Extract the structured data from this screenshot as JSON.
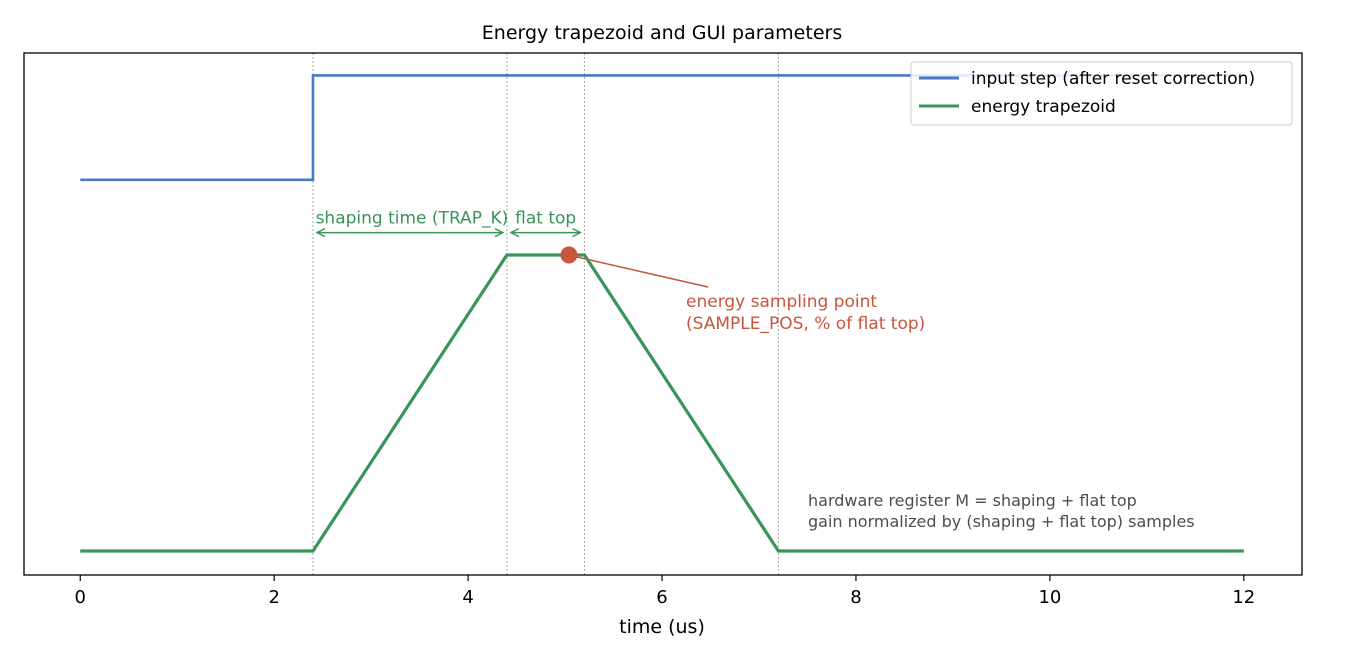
{
  "chart_data": {
    "type": "line",
    "title": "Energy trapezoid and GUI parameters",
    "xlabel": "time (us)",
    "ylabel": "",
    "xlim": [
      -0.58,
      12.6
    ],
    "ylim": [
      0,
      1
    ],
    "x_ticks": [
      "0",
      "2",
      "4",
      "6",
      "8",
      "10",
      "12"
    ],
    "x_tick_values": [
      0,
      2,
      4,
      6,
      8,
      10,
      12
    ],
    "yticks_visible": false,
    "grid": false,
    "legend_position": "top-right",
    "series": [
      {
        "name": "input step (after reset correction)",
        "color": "#4a78c8",
        "points": [
          [
            0,
            0.757
          ],
          [
            2.4,
            0.757
          ],
          [
            2.4,
            0.957
          ],
          [
            12,
            0.957
          ]
        ]
      },
      {
        "name": "energy trapezoid",
        "color": "#3a9358",
        "points": [
          [
            0,
            0.046
          ],
          [
            2.4,
            0.046
          ],
          [
            4.4,
            0.613
          ],
          [
            5.2,
            0.613
          ],
          [
            7.2,
            0.046
          ],
          [
            12,
            0.046
          ]
        ]
      }
    ],
    "vlines": [
      2.4,
      4.4,
      5.2,
      7.2
    ],
    "vline_color": "#aaaaaa",
    "annotations": {
      "shaping": {
        "text": "shaping time (TRAP_K)",
        "x0": 2.4,
        "x1": 4.4,
        "y": 0.656,
        "color": "#3a9358"
      },
      "flat": {
        "text": "flat top",
        "x0": 4.4,
        "x1": 5.2,
        "y": 0.656,
        "color": "#3a9358"
      },
      "sample": {
        "lines": [
          "energy sampling point",
          "(SAMPLE_POS, % of flat top)"
        ],
        "point": [
          5.04,
          0.613
        ],
        "color": "#c8553d"
      },
      "note": {
        "lines": [
          "hardware register M = shaping + flat top",
          "gain normalized by (shaping + flat top) samples"
        ],
        "color": "#4d4d4d"
      }
    }
  }
}
